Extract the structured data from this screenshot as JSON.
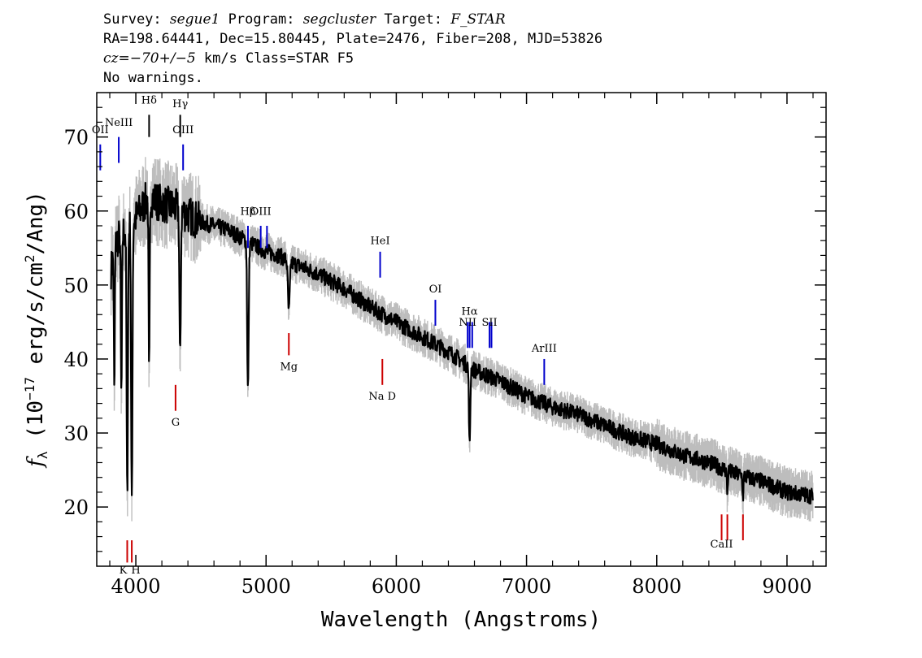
{
  "header": {
    "line1": {
      "survey_label": "Survey: ",
      "survey": "segue1",
      "program_label": " Program: ",
      "program": "segcluster",
      "target_label": " Target: ",
      "target": "F_STAR"
    },
    "line2": "RA=198.64441, Dec=15.80445, Plate=2476, Fiber=208, MJD=53826",
    "line3": {
      "cz_label": "cz",
      "cz_value": "=−70+/−5",
      "rest": " km/s Class=STAR F5"
    },
    "line4": "No warnings."
  },
  "chart_data": {
    "type": "line",
    "xlabel": "Wavelength (Angstroms)",
    "ylabel": {
      "symbol": "f",
      "subscript": "λ",
      "prefix": " (10",
      "exponent": "−17",
      "suffix1": " erg/s/cm",
      "exponent2": "2",
      "suffix2": "/Ang)"
    },
    "xlim": [
      3700,
      9300
    ],
    "ylim": [
      12,
      76
    ],
    "x_ticks": [
      {
        "value": 4000,
        "label": "4000"
      },
      {
        "value": 5000,
        "label": "5000"
      },
      {
        "value": 6000,
        "label": "6000"
      },
      {
        "value": 7000,
        "label": "7000"
      },
      {
        "value": 8000,
        "label": "8000"
      },
      {
        "value": 9000,
        "label": "9000"
      }
    ],
    "y_ticks": [
      {
        "value": 20,
        "label": "20"
      },
      {
        "value": 30,
        "label": "30"
      },
      {
        "value": 40,
        "label": "40"
      },
      {
        "value": 50,
        "label": "50"
      },
      {
        "value": 60,
        "label": "60"
      },
      {
        "value": 70,
        "label": "70"
      }
    ],
    "colors": {
      "flux": "#000000",
      "error_band": "#bdbdbd",
      "emission": "#0000cc",
      "absorption": "#cc0000"
    },
    "continuum": [
      [
        3810,
        52
      ],
      [
        3850,
        56
      ],
      [
        3900,
        57
      ],
      [
        3950,
        58
      ],
      [
        4000,
        59
      ],
      [
        4100,
        62
      ],
      [
        4200,
        61
      ],
      [
        4300,
        60.5
      ],
      [
        4400,
        59.5
      ],
      [
        4500,
        58.5
      ],
      [
        4600,
        58
      ],
      [
        4700,
        57.5
      ],
      [
        4800,
        56.5
      ],
      [
        4900,
        55.5
      ],
      [
        5000,
        54.5
      ],
      [
        5100,
        54
      ],
      [
        5200,
        53
      ],
      [
        5400,
        51.5
      ],
      [
        5600,
        49.5
      ],
      [
        5800,
        47
      ],
      [
        6000,
        45
      ],
      [
        6200,
        43
      ],
      [
        6400,
        41
      ],
      [
        6600,
        38.5
      ],
      [
        6800,
        37
      ],
      [
        7000,
        35
      ],
      [
        7200,
        33.5
      ],
      [
        7400,
        32.5
      ],
      [
        7600,
        31
      ],
      [
        7800,
        29.5
      ],
      [
        8000,
        28.5
      ],
      [
        8200,
        27
      ],
      [
        8400,
        26
      ],
      [
        8600,
        24.5
      ],
      [
        8800,
        23.5
      ],
      [
        9000,
        22
      ],
      [
        9200,
        21.5
      ]
    ],
    "absorption_features": [
      {
        "center": 3835,
        "depth": 20,
        "width": 5
      },
      {
        "center": 3889,
        "depth": 22,
        "width": 6
      },
      {
        "center": 3934,
        "depth": 36,
        "width": 7
      },
      {
        "center": 3969,
        "depth": 39,
        "width": 7
      },
      {
        "center": 4102,
        "depth": 25,
        "width": 6
      },
      {
        "center": 4340,
        "depth": 21,
        "width": 7
      },
      {
        "center": 4861,
        "depth": 20,
        "width": 8
      },
      {
        "center": 5175,
        "depth": 7,
        "width": 10
      },
      {
        "center": 6563,
        "depth": 11,
        "width": 7
      },
      {
        "center": 8542,
        "depth": 3,
        "width": 5
      },
      {
        "center": 8662,
        "depth": 3,
        "width": 5
      }
    ],
    "noise_seed": 7,
    "line_markers": [
      {
        "label": "OII",
        "x": 3727,
        "kind": "emission",
        "y_top": 69,
        "y_bottom": 65.5,
        "label_y": 70.5
      },
      {
        "label": "NeIII",
        "x": 3869,
        "kind": "emission",
        "y_top": 70,
        "y_bottom": 66.5,
        "label_y": 71.5
      },
      {
        "label": "Hδ",
        "x": 4102,
        "kind": "absorption",
        "y_top": 73,
        "y_bottom": 70,
        "label_y": 74.5
      },
      {
        "label": "Hγ",
        "x": 4341,
        "kind": "absorption",
        "y_top": 73,
        "y_bottom": 70,
        "label_y": 74
      },
      {
        "label": "OIII",
        "x": 4363,
        "kind": "emission",
        "y_top": 69,
        "y_bottom": 65.5,
        "label_y": 70.5
      },
      {
        "label": "Hβ",
        "x": 4861,
        "kind": "emission",
        "y_top": 58,
        "y_bottom": 55,
        "label_y": 59.5
      },
      {
        "label": "OIII",
        "x": 4959,
        "kind": "emission",
        "y_top": 58,
        "y_bottom": 55,
        "label_y": 59.5
      },
      {
        "label": "OIII",
        "x": 5007,
        "kind": "emission",
        "y_top": 58,
        "y_bottom": 55,
        "label_y": 59.5,
        "hide_label": true
      },
      {
        "label": "Mg",
        "x": 5175,
        "kind": "absorption",
        "y_top": 43.5,
        "y_bottom": 40.5,
        "label_y": 38.5
      },
      {
        "label": "HeI",
        "x": 5876,
        "kind": "emission",
        "y_top": 54.5,
        "y_bottom": 51,
        "label_y": 55.5
      },
      {
        "label": "Na D",
        "x": 5893,
        "kind": "absorption",
        "y_top": 40,
        "y_bottom": 36.5,
        "label_y": 34.5
      },
      {
        "label": "OI",
        "x": 6300,
        "kind": "emission",
        "y_top": 48,
        "y_bottom": 44.5,
        "label_y": 49
      },
      {
        "label": "NII",
        "x": 6548,
        "kind": "emission",
        "y_top": 45,
        "y_bottom": 41.5,
        "label_y": 44.5
      },
      {
        "label": "Hα",
        "x": 6563,
        "kind": "emission",
        "y_top": 45,
        "y_bottom": 41.5,
        "label_y": 46
      },
      {
        "label": "NII",
        "x": 6583,
        "kind": "emission",
        "y_top": 45,
        "y_bottom": 41.5,
        "label_y": 44.5,
        "hide_label": true
      },
      {
        "label": "SII",
        "x": 6716,
        "kind": "emission",
        "y_top": 45,
        "y_bottom": 41.5,
        "label_y": 44.5
      },
      {
        "label": "SII",
        "x": 6731,
        "kind": "emission",
        "y_top": 45,
        "y_bottom": 41.5,
        "label_y": 44.5,
        "hide_label": true
      },
      {
        "label": "ArIII",
        "x": 7136,
        "kind": "emission",
        "y_top": 40,
        "y_bottom": 36.5,
        "label_y": 41
      },
      {
        "label": "K",
        "x": 3934,
        "kind": "absorption",
        "y_top": 15.5,
        "y_bottom": 12.5,
        "label_y": 11
      },
      {
        "label": "H",
        "x": 3969,
        "kind": "absorption",
        "y_top": 15.5,
        "y_bottom": 12.5,
        "label_y": 11
      },
      {
        "label": "G",
        "x": 4305,
        "kind": "absorption",
        "y_top": 36.5,
        "y_bottom": 33,
        "label_y": 31
      },
      {
        "label": "CaII",
        "x": 8498,
        "kind": "absorption",
        "y_top": 19,
        "y_bottom": 15.5,
        "label_y": 14.5
      },
      {
        "label": "CaII",
        "x": 8542,
        "kind": "absorption",
        "y_top": 19,
        "y_bottom": 15.5,
        "label_y": 14.5,
        "hide_label": true
      },
      {
        "label": "CaII",
        "x": 8662,
        "kind": "absorption",
        "y_top": 19,
        "y_bottom": 15.5,
        "label_y": 14.5,
        "hide_label": true
      }
    ]
  }
}
